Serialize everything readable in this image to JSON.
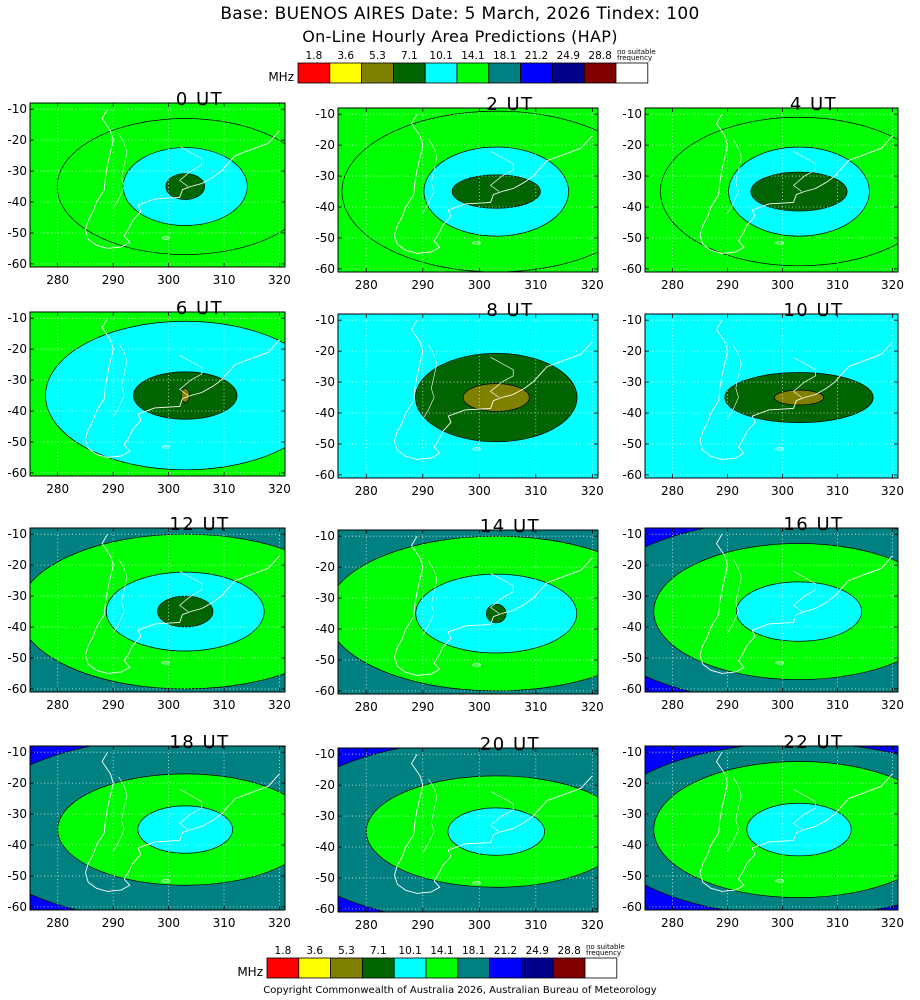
{
  "header": {
    "title": "Base: BUENOS AIRES Date: 5 March, 2026 Tindex: 100",
    "subtitle": "On-Line Hourly Area Predictions (HAP)"
  },
  "legend": {
    "unit": "MHz",
    "values": [
      "1.8",
      "3.6",
      "5.3",
      "7.1",
      "10.1",
      "14.1",
      "18.1",
      "21.2",
      "24.9",
      "28.8"
    ],
    "colors": [
      "#ff0000",
      "#ffff00",
      "#808000",
      "#006400",
      "#00ffff",
      "#00ff00",
      "#008080",
      "#0000ff",
      "#00008b",
      "#800000",
      "#ffffff"
    ],
    "no_freq_line1": "no suitable",
    "no_freq_line2": "frequency"
  },
  "chart_data": {
    "type": "heatmap",
    "x_ticks": [
      280,
      290,
      300,
      310,
      320
    ],
    "y_ticks": [
      -10,
      -20,
      -30,
      -40,
      -50,
      -60
    ],
    "xlim": [
      275,
      321
    ],
    "ylim": [
      -61,
      -8
    ],
    "base_point": [
      303,
      -35
    ],
    "panels": [
      {
        "label": "0 UT",
        "bg": 3,
        "bands": [
          [
            5,
            38,
            1.25,
            1.1
          ],
          [
            5,
            22,
            1.05,
            1.0
          ],
          [
            4,
            14,
            0.8,
            0.9
          ],
          [
            3,
            3.5,
            1.0,
            1.2
          ]
        ]
      },
      {
        "label": "2 UT",
        "bg": 3,
        "bands": [
          [
            5,
            38,
            1.25,
            1.1
          ],
          [
            5,
            26,
            1.05,
            1.0
          ],
          [
            4,
            16,
            0.8,
            0.9
          ],
          [
            3,
            6,
            1.3,
            0.9
          ]
        ]
      },
      {
        "label": "4 UT",
        "bg": 2,
        "bands": [
          [
            5,
            34,
            1.3,
            1.05
          ],
          [
            5,
            24,
            1.05,
            1.0
          ],
          [
            4,
            16,
            0.8,
            0.9
          ],
          [
            3,
            7,
            1.25,
            0.9
          ]
        ]
      },
      {
        "label": "6 UT",
        "bg": 2,
        "bands": [
          [
            5,
            36,
            1.3,
            1.0
          ],
          [
            4,
            24,
            1.05,
            1.0
          ],
          [
            3,
            8.5,
            1.1,
            0.9
          ],
          [
            2,
            1.5,
            0.5,
            1.5
          ]
        ]
      },
      {
        "label": "8 UT",
        "bg": 4,
        "bands": [
          [
            3,
            13,
            1.1,
            1.1
          ],
          [
            2,
            4.5,
            1.3,
            1.0
          ]
        ]
      },
      {
        "label": "10 UT",
        "bg": 4,
        "bands": [
          [
            3,
            9,
            1.5,
            0.9
          ],
          [
            2,
            3,
            1.5,
            0.8
          ]
        ]
      },
      {
        "label": "12 UT",
        "bg": 1,
        "bands": [
          [
            6,
            40,
            1.35,
            0.95
          ],
          [
            5,
            25,
            1.2,
            1.0
          ],
          [
            4,
            15,
            0.95,
            0.85
          ],
          [
            3,
            5,
            1.0,
            1.0
          ]
        ]
      },
      {
        "label": "14 UT",
        "bg": 1,
        "bands": [
          [
            6,
            40,
            1.35,
            0.95
          ],
          [
            5,
            25,
            1.2,
            1.0
          ],
          [
            4,
            15,
            0.95,
            0.85
          ],
          [
            3,
            2.5,
            0.7,
            1.2
          ]
        ]
      },
      {
        "label": "16 UT",
        "bg": 1,
        "bands": [
          [
            7,
            50,
            1.3,
            0.95
          ],
          [
            6,
            30,
            1.3,
            1.0
          ],
          [
            5,
            22,
            1.2,
            1.0
          ],
          [
            4,
            12,
            0.95,
            0.8
          ]
        ]
      },
      {
        "label": "18 UT",
        "bg": 1,
        "bands": [
          [
            7,
            50,
            1.3,
            0.95
          ],
          [
            6,
            30,
            1.3,
            1.0
          ],
          [
            5,
            20,
            1.15,
            0.9
          ],
          [
            4,
            9,
            0.95,
            0.85
          ]
        ]
      },
      {
        "label": "20 UT",
        "bg": 1,
        "bands": [
          [
            7,
            50,
            1.3,
            0.95
          ],
          [
            6,
            30,
            1.3,
            1.0
          ],
          [
            5,
            20,
            1.15,
            0.9
          ],
          [
            4,
            9,
            0.95,
            0.85
          ]
        ]
      },
      {
        "label": "22 UT",
        "bg": 1,
        "bands": [
          [
            7,
            50,
            1.3,
            0.95
          ],
          [
            6,
            28,
            1.3,
            1.0
          ],
          [
            5,
            22,
            1.2,
            1.0
          ],
          [
            4,
            10,
            0.95,
            0.85
          ]
        ]
      }
    ]
  },
  "footer": {
    "copyright": "Copyright Commonwealth of Australia 2026, Australian Bureau of Meteorology"
  }
}
